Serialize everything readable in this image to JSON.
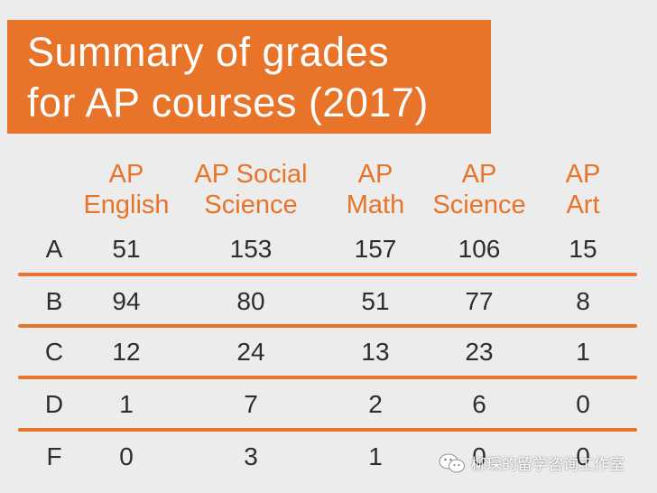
{
  "title": {
    "line1": "Summary of grades",
    "line2": "for AP courses (2017)"
  },
  "colors": {
    "accent": "#e8742a",
    "text": "#2d2d2d",
    "background": "#ececec"
  },
  "chart_data": {
    "type": "table",
    "title": "Summary of grades for AP courses (2017)",
    "columns": [
      {
        "line1": "AP",
        "line2": "English"
      },
      {
        "line1": "AP Social",
        "line2": "Science"
      },
      {
        "line1": "AP",
        "line2": "Math"
      },
      {
        "line1": "AP",
        "line2": "Science"
      },
      {
        "line1": "AP",
        "line2": "Art"
      }
    ],
    "rows": [
      {
        "grade": "A",
        "values": [
          "51",
          "153",
          "157",
          "106",
          "15"
        ]
      },
      {
        "grade": "B",
        "values": [
          "94",
          "80",
          "51",
          "77",
          "8"
        ]
      },
      {
        "grade": "C",
        "values": [
          "12",
          "24",
          "13",
          "23",
          "1"
        ]
      },
      {
        "grade": "D",
        "values": [
          "1",
          "7",
          "2",
          "6",
          "0"
        ]
      },
      {
        "grade": "F",
        "values": [
          "0",
          "3",
          "1",
          "0",
          "0"
        ]
      }
    ]
  },
  "watermark": {
    "text": "柳琛的留学咨询工作室",
    "icon": "wechat-icon"
  }
}
